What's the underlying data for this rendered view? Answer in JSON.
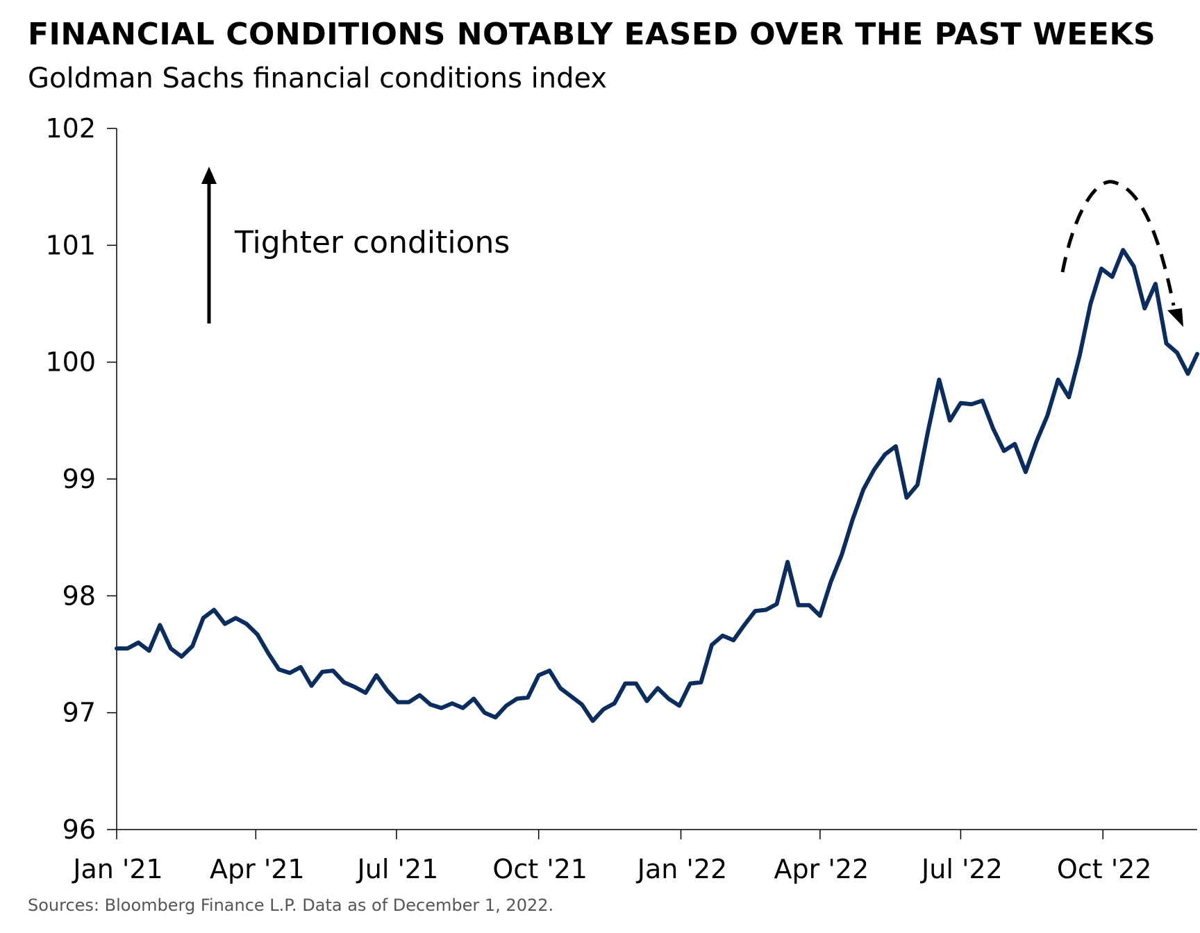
{
  "header": {
    "title": "FINANCIAL CONDITIONS NOTABLY EASED OVER THE PAST WEEKS",
    "subtitle": "Goldman Sachs financial conditions index"
  },
  "footer": {
    "source": "Sources: Bloomberg Finance L.P. Data as of December 1, 2022."
  },
  "chart_data": {
    "type": "line",
    "title": "FINANCIAL CONDITIONS NOTABLY EASED OVER THE PAST WEEKS",
    "subtitle": "Goldman Sachs financial conditions index",
    "xlabel": "",
    "ylabel": "",
    "x_range": [
      "2021-01-01",
      "2022-12-01"
    ],
    "ylim": [
      96,
      102
    ],
    "y_ticks": [
      96,
      97,
      98,
      99,
      100,
      101,
      102
    ],
    "x_ticks": [
      {
        "label": "Jan '21",
        "date": "2021-01-01"
      },
      {
        "label": "Apr '21",
        "date": "2021-04-01"
      },
      {
        "label": "Jul '21",
        "date": "2021-07-01"
      },
      {
        "label": "Oct '21",
        "date": "2021-10-01"
      },
      {
        "label": "Jan '22",
        "date": "2022-01-01"
      },
      {
        "label": "Apr '22",
        "date": "2022-04-01"
      },
      {
        "label": "Jul '22",
        "date": "2022-07-01"
      },
      {
        "label": "Oct '22",
        "date": "2022-10-01"
      }
    ],
    "grid": false,
    "color": "#0b2d5e",
    "annotation": {
      "text": "Tighter conditions"
    },
    "series": [
      {
        "x": [
          "2021-01-01",
          "2021-01-08",
          "2021-01-15",
          "2021-01-22",
          "2021-01-29",
          "2021-02-05",
          "2021-02-12",
          "2021-02-19",
          "2021-02-26",
          "2021-03-05",
          "2021-03-12",
          "2021-03-19",
          "2021-03-26",
          "2021-04-02",
          "2021-04-09",
          "2021-04-16",
          "2021-04-23",
          "2021-04-30",
          "2021-05-07",
          "2021-05-14",
          "2021-05-21",
          "2021-05-28",
          "2021-06-04",
          "2021-06-11",
          "2021-06-18",
          "2021-06-25",
          "2021-07-02",
          "2021-07-09",
          "2021-07-16",
          "2021-07-23",
          "2021-07-30",
          "2021-08-06",
          "2021-08-13",
          "2021-08-20",
          "2021-08-27",
          "2021-09-03",
          "2021-09-10",
          "2021-09-17",
          "2021-09-24",
          "2021-10-01",
          "2021-10-08",
          "2021-10-15",
          "2021-10-22",
          "2021-10-29",
          "2021-11-05",
          "2021-11-12",
          "2021-11-19",
          "2021-11-26",
          "2021-12-03",
          "2021-12-10",
          "2021-12-17",
          "2021-12-24",
          "2021-12-31",
          "2022-01-07",
          "2022-01-14",
          "2022-01-21",
          "2022-01-28",
          "2022-02-04",
          "2022-02-11",
          "2022-02-18",
          "2022-02-25",
          "2022-03-04",
          "2022-03-11",
          "2022-03-18",
          "2022-03-25",
          "2022-04-01",
          "2022-04-08",
          "2022-04-15",
          "2022-04-22",
          "2022-04-29",
          "2022-05-06",
          "2022-05-13",
          "2022-05-20",
          "2022-05-27",
          "2022-06-03",
          "2022-06-10",
          "2022-06-17",
          "2022-06-24",
          "2022-07-01",
          "2022-07-08",
          "2022-07-15",
          "2022-07-22",
          "2022-07-29",
          "2022-08-05",
          "2022-08-12",
          "2022-08-19",
          "2022-08-26",
          "2022-09-02",
          "2022-09-09",
          "2022-09-16",
          "2022-09-23",
          "2022-09-30",
          "2022-10-07",
          "2022-10-14",
          "2022-10-21",
          "2022-10-28",
          "2022-11-04",
          "2022-11-11",
          "2022-11-18",
          "2022-11-25",
          "2022-12-01"
        ],
        "y": [
          97.55,
          97.55,
          97.6,
          97.53,
          97.75,
          97.55,
          97.48,
          97.57,
          97.81,
          97.88,
          97.76,
          97.81,
          97.76,
          97.67,
          97.51,
          97.37,
          97.34,
          97.39,
          97.23,
          97.35,
          97.36,
          97.26,
          97.22,
          97.17,
          97.32,
          97.19,
          97.09,
          97.09,
          97.15,
          97.07,
          97.04,
          97.08,
          97.04,
          97.12,
          97.0,
          96.96,
          97.06,
          97.12,
          97.13,
          97.32,
          97.36,
          97.21,
          97.14,
          97.07,
          96.93,
          97.03,
          97.08,
          97.25,
          97.25,
          97.1,
          97.21,
          97.12,
          97.06,
          97.25,
          97.26,
          97.58,
          97.66,
          97.62,
          97.75,
          97.87,
          97.88,
          97.93,
          98.29,
          97.92,
          97.92,
          97.83,
          98.12,
          98.35,
          98.65,
          98.91,
          99.08,
          99.21,
          99.28,
          98.84,
          98.95,
          99.42,
          99.85,
          99.5,
          99.65,
          99.64,
          99.67,
          99.43,
          99.24,
          99.3,
          99.06,
          99.32,
          99.54,
          99.85,
          99.7,
          100.06,
          100.5,
          100.8,
          100.73,
          100.96,
          100.82,
          100.46,
          100.67,
          100.16,
          100.08,
          99.9,
          100.07
        ]
      }
    ]
  }
}
